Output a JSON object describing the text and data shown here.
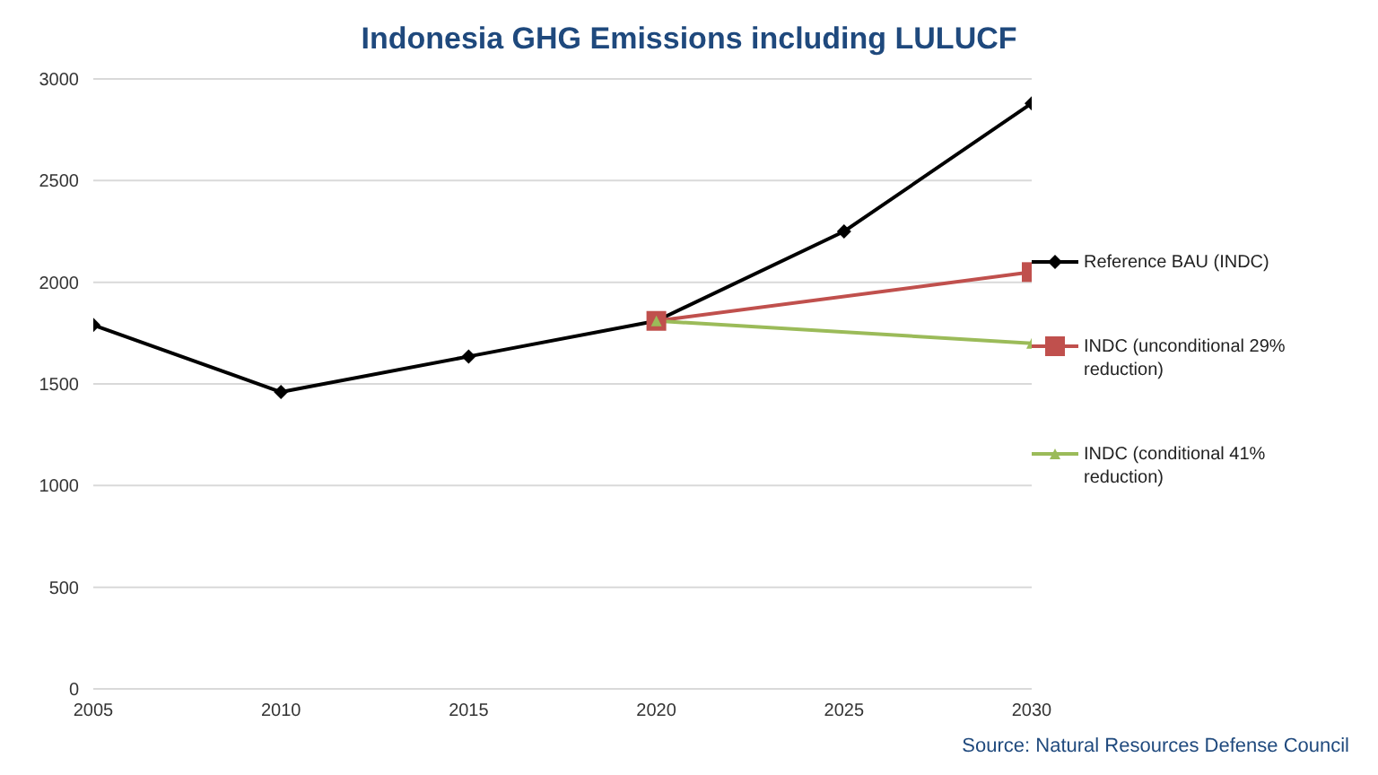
{
  "chart_data": {
    "type": "line",
    "title": "Indonesia GHG Emissions including LULUCF",
    "x": [
      2005,
      2010,
      2015,
      2020,
      2025,
      2030
    ],
    "series": [
      {
        "name": "Reference BAU (INDC)",
        "color": "#000000",
        "marker": "diamond",
        "values": [
          1790,
          1460,
          1635,
          1810,
          2250,
          2880
        ]
      },
      {
        "name": "INDC (unconditional 29% reduction)",
        "color": "#c0504d",
        "marker": "square",
        "values": [
          null,
          null,
          null,
          1810,
          null,
          2050
        ]
      },
      {
        "name": "INDC (conditional 41% reduction)",
        "color": "#9bbb59",
        "marker": "triangle",
        "values": [
          null,
          null,
          null,
          1810,
          null,
          1700
        ]
      }
    ],
    "xlim": [
      2005,
      2030
    ],
    "xticks": [
      2005,
      2010,
      2015,
      2020,
      2025,
      2030
    ],
    "ylim": [
      0,
      3000
    ],
    "yticks": [
      0,
      500,
      1000,
      1500,
      2000,
      2500,
      3000
    ],
    "grid": "y",
    "legend": "right",
    "annotations": [
      "Source: Natural Resources Defense Council"
    ]
  }
}
